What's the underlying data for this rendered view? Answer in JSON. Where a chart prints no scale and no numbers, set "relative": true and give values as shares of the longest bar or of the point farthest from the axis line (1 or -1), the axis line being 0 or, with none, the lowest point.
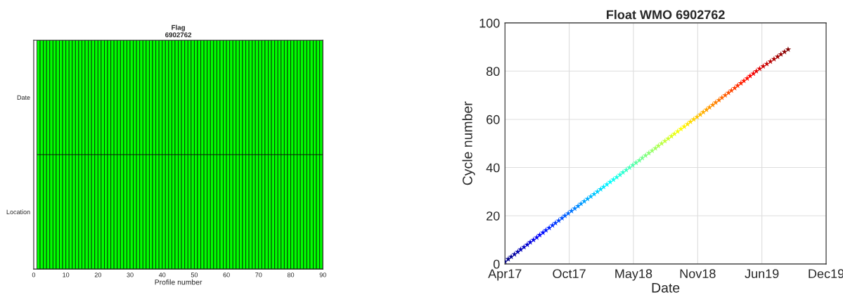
{
  "chart_data": [
    {
      "type": "bar",
      "stacked": true,
      "relative": true,
      "title": "Flag\n6902762",
      "xlabel": "Profile number",
      "x": [
        1,
        2,
        3,
        4,
        5,
        6,
        7,
        8,
        9,
        10,
        11,
        12,
        13,
        14,
        15,
        16,
        17,
        18,
        19,
        20,
        21,
        22,
        23,
        24,
        25,
        26,
        27,
        28,
        29,
        30,
        31,
        32,
        33,
        34,
        35,
        36,
        37,
        38,
        39,
        40,
        41,
        42,
        43,
        44,
        45,
        46,
        47,
        48,
        49,
        50,
        51,
        52,
        53,
        54,
        55,
        56,
        57,
        58,
        59,
        60,
        61,
        62,
        63,
        64,
        65,
        66,
        67,
        68,
        69,
        70,
        71,
        72,
        73,
        74,
        75,
        76,
        77,
        78,
        79,
        80,
        81,
        82,
        83,
        84,
        85,
        86,
        87,
        88,
        89
      ],
      "series": [
        {
          "name": "Location",
          "color": "#00ff00",
          "values": [
            0.5,
            0.5,
            0.5,
            0.5,
            0.5,
            0.5,
            0.5,
            0.5,
            0.5,
            0.5,
            0.5,
            0.5,
            0.5,
            0.5,
            0.5,
            0.5,
            0.5,
            0.5,
            0.5,
            0.5,
            0.5,
            0.5,
            0.5,
            0.5,
            0.5,
            0.5,
            0.5,
            0.5,
            0.5,
            0.5,
            0.5,
            0.5,
            0.5,
            0.5,
            0.5,
            0.5,
            0.5,
            0.5,
            0.5,
            0.5,
            0.5,
            0.5,
            0.5,
            0.5,
            0.5,
            0.5,
            0.5,
            0.5,
            0.5,
            0.5,
            0.5,
            0.5,
            0.5,
            0.5,
            0.5,
            0.5,
            0.5,
            0.5,
            0.5,
            0.5,
            0.5,
            0.5,
            0.5,
            0.5,
            0.5,
            0.5,
            0.5,
            0.5,
            0.5,
            0.5,
            0.5,
            0.5,
            0.5,
            0.5,
            0.5,
            0.5,
            0.5,
            0.5,
            0.5,
            0.5,
            0.5,
            0.5,
            0.5,
            0.5,
            0.5,
            0.5,
            0.5,
            0.5,
            0.5
          ]
        },
        {
          "name": "Date",
          "color": "#00ff00",
          "values": [
            0.5,
            0.5,
            0.5,
            0.5,
            0.5,
            0.5,
            0.5,
            0.5,
            0.5,
            0.5,
            0.5,
            0.5,
            0.5,
            0.5,
            0.5,
            0.5,
            0.5,
            0.5,
            0.5,
            0.5,
            0.5,
            0.5,
            0.5,
            0.5,
            0.5,
            0.5,
            0.5,
            0.5,
            0.5,
            0.5,
            0.5,
            0.5,
            0.5,
            0.5,
            0.5,
            0.5,
            0.5,
            0.5,
            0.5,
            0.5,
            0.5,
            0.5,
            0.5,
            0.5,
            0.5,
            0.5,
            0.5,
            0.5,
            0.5,
            0.5,
            0.5,
            0.5,
            0.5,
            0.5,
            0.5,
            0.5,
            0.5,
            0.5,
            0.5,
            0.5,
            0.5,
            0.5,
            0.5,
            0.5,
            0.5,
            0.5,
            0.5,
            0.5,
            0.5,
            0.5,
            0.5,
            0.5,
            0.5,
            0.5,
            0.5,
            0.5,
            0.5,
            0.5,
            0.5,
            0.5,
            0.5,
            0.5,
            0.5,
            0.5,
            0.5,
            0.5,
            0.5,
            0.5,
            0.5
          ]
        }
      ],
      "xlim": [
        0,
        90
      ],
      "xticks": [
        0,
        10,
        20,
        30,
        40,
        50,
        60,
        70,
        80,
        90
      ]
    },
    {
      "type": "scatter",
      "title": "Float WMO 6902762",
      "xlabel": "Date",
      "ylabel": "Cycle number",
      "marker": "star",
      "grid": true,
      "x": [
        "2017-04-10",
        "2017-04-20",
        "2017-04-29",
        "2017-05-09",
        "2017-05-19",
        "2017-05-28",
        "2017-06-07",
        "2017-06-17",
        "2017-06-26",
        "2017-07-06",
        "2017-07-16",
        "2017-07-25",
        "2017-08-04",
        "2017-08-13",
        "2017-08-23",
        "2017-09-02",
        "2017-09-11",
        "2017-09-21",
        "2017-10-01",
        "2017-10-10",
        "2017-10-20",
        "2017-10-30",
        "2017-11-09",
        "2017-11-19",
        "2017-11-28",
        "2017-12-08",
        "2017-12-18",
        "2017-12-28",
        "2018-01-07",
        "2018-01-17",
        "2018-01-27",
        "2018-02-05",
        "2018-02-15",
        "2018-02-25",
        "2018-03-07",
        "2018-03-17",
        "2018-03-27",
        "2018-04-05",
        "2018-04-15",
        "2018-04-25",
        "2018-05-05",
        "2018-05-15",
        "2018-05-25",
        "2018-06-03",
        "2018-06-13",
        "2018-06-23",
        "2018-07-03",
        "2018-07-13",
        "2018-07-22",
        "2018-08-01",
        "2018-08-11",
        "2018-08-21",
        "2018-08-31",
        "2018-09-09",
        "2018-09-19",
        "2018-09-29",
        "2018-10-09",
        "2018-10-19",
        "2018-10-28",
        "2018-11-07",
        "2018-11-17",
        "2018-11-27",
        "2018-12-06",
        "2018-12-16",
        "2018-12-25",
        "2019-01-04",
        "2019-01-13",
        "2019-01-23",
        "2019-02-01",
        "2019-02-11",
        "2019-02-21",
        "2019-03-02",
        "2019-03-12",
        "2019-03-21",
        "2019-03-31",
        "2019-04-09",
        "2019-04-19",
        "2019-04-28",
        "2019-05-08",
        "2019-05-17",
        "2019-05-27",
        "2019-06-07",
        "2019-06-18",
        "2019-06-29",
        "2019-07-10",
        "2019-07-21",
        "2019-07-31",
        "2019-08-11",
        "2019-08-22"
      ],
      "values": [
        1,
        2,
        3,
        4,
        5,
        6,
        7,
        8,
        9,
        10,
        11,
        12,
        13,
        14,
        15,
        16,
        17,
        18,
        19,
        20,
        21,
        22,
        23,
        24,
        25,
        26,
        27,
        28,
        29,
        30,
        31,
        32,
        33,
        34,
        35,
        36,
        37,
        38,
        39,
        40,
        41,
        42,
        43,
        44,
        45,
        46,
        47,
        48,
        49,
        50,
        51,
        52,
        53,
        54,
        55,
        56,
        57,
        58,
        59,
        60,
        61,
        62,
        63,
        64,
        65,
        66,
        67,
        68,
        69,
        70,
        71,
        72,
        73,
        74,
        75,
        76,
        77,
        78,
        79,
        80,
        81,
        82,
        83,
        84,
        85,
        86,
        87,
        88,
        89
      ],
      "colors": [
        "#000080",
        "#00008b",
        "#000097",
        "#0000a2",
        "#0000ae",
        "#0000b9",
        "#0000c5",
        "#0000d1",
        "#0000dc",
        "#0000e8",
        "#0000f3",
        "#0000ff",
        "#000cff",
        "#0017ff",
        "#0023ff",
        "#002eff",
        "#003aff",
        "#0046ff",
        "#0051ff",
        "#005dff",
        "#0068ff",
        "#0074ff",
        "#0080ff",
        "#008bff",
        "#0097ff",
        "#00a2ff",
        "#00aeff",
        "#00b9ff",
        "#00c5ff",
        "#00d1ff",
        "#00dcff",
        "#00e8ff",
        "#00f3ff",
        "#00ffff",
        "#0cfff3",
        "#17ffe8",
        "#23ffdc",
        "#2effd1",
        "#3affc5",
        "#46ffb9",
        "#51ffae",
        "#5dffa2",
        "#68ff97",
        "#74ff8b",
        "#80ff80",
        "#8bff74",
        "#97ff68",
        "#a2ff5d",
        "#aeff51",
        "#b9ff46",
        "#c5ff3a",
        "#d1ff2e",
        "#dcff23",
        "#e8ff17",
        "#f3ff0c",
        "#ffff00",
        "#fff300",
        "#ffe800",
        "#ffdc00",
        "#ffd100",
        "#ffc500",
        "#ffb900",
        "#ffae00",
        "#ffa200",
        "#ff9700",
        "#ff8b00",
        "#ff8000",
        "#ff7400",
        "#ff6800",
        "#ff5d00",
        "#ff5100",
        "#ff4600",
        "#ff3a00",
        "#ff2e00",
        "#ff2300",
        "#ff1700",
        "#ff0c00",
        "#ff0000",
        "#f30000",
        "#e80000",
        "#dc0000",
        "#d10000",
        "#c50000",
        "#b90000",
        "#ae0000",
        "#a20000",
        "#970000",
        "#8b0000",
        "#800000"
      ],
      "xlim": [
        "2017-04-10",
        "2019-12-16"
      ],
      "xticks": [
        {
          "value": "2017-04-10",
          "label": "Apr17"
        },
        {
          "value": "2017-10-23",
          "label": "Oct17"
        },
        {
          "value": "2018-05-07",
          "label": "May18"
        },
        {
          "value": "2018-11-19",
          "label": "Nov18"
        },
        {
          "value": "2019-06-03",
          "label": "Jun19"
        },
        {
          "value": "2019-12-16",
          "label": "Dec19"
        }
      ],
      "ylim": [
        0,
        100
      ],
      "yticks": [
        0,
        20,
        40,
        60,
        80,
        100
      ]
    }
  ]
}
